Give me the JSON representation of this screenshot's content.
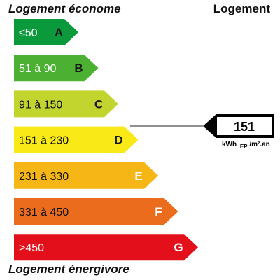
{
  "header": {
    "left_label": "Logement économe",
    "right_label": "Logement"
  },
  "footer": {
    "left_label": "Logement énergivore"
  },
  "classes": [
    {
      "range": "≤50",
      "letter": "A",
      "color": "#0a9a3b",
      "text_color": "#ffffff",
      "letter_color": "#1a1a1a"
    },
    {
      "range": "51 à 90",
      "letter": "B",
      "color": "#4cb132",
      "text_color": "#ffffff",
      "letter_color": "#1a1a1a"
    },
    {
      "range": "91 à 150",
      "letter": "C",
      "color": "#c2d52f",
      "text_color": "#111111",
      "letter_color": "#1a1a1a"
    },
    {
      "range": "151 à 230",
      "letter": "D",
      "color": "#f9ea17",
      "text_color": "#111111",
      "letter_color": "#1a1a1a"
    },
    {
      "range": "231 à 330",
      "letter": "E",
      "color": "#f6b716",
      "text_color": "#111111",
      "letter_color": "#ffffff"
    },
    {
      "range": "331 à 450",
      "letter": "F",
      "color": "#ea6c1c",
      "text_color": "#111111",
      "letter_color": "#ffffff"
    },
    {
      "range": ">450",
      "letter": "G",
      "color": "#e30f1b",
      "text_color": "#ffffff",
      "letter_color": "#ffffff"
    }
  ],
  "indicator": {
    "value": "151",
    "unit_prefix": "kWh",
    "unit_sub": "EP",
    "unit_suffix": "/m².an",
    "class_index": 3
  }
}
